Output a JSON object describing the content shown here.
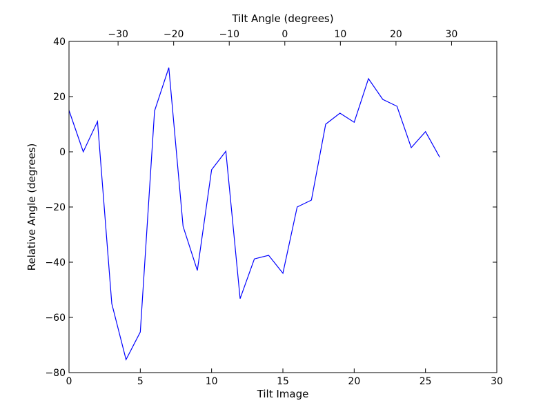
{
  "chart_data": {
    "type": "line",
    "xlabel": "Tilt Image",
    "ylabel": "Relative Angle (degrees)",
    "top_xlabel": "Tilt Angle (degrees)",
    "xlim": [
      0,
      30
    ],
    "ylim": [
      -80,
      40
    ],
    "top_xlim": [
      -38.83,
      38.14
    ],
    "x_ticks": [
      0,
      5,
      10,
      15,
      20,
      25,
      30
    ],
    "y_ticks": [
      -80,
      -60,
      -40,
      -20,
      0,
      20,
      40
    ],
    "top_x_ticks": [
      -30,
      -20,
      -10,
      0,
      10,
      20,
      30
    ],
    "grid": false,
    "line_color": "#0000ff",
    "series": [
      {
        "x": [
          0,
          1,
          2,
          3,
          4,
          5,
          6,
          7,
          8,
          9,
          10,
          11,
          12,
          13,
          14,
          15,
          16,
          17,
          18,
          19,
          20,
          21,
          22,
          23,
          24,
          25,
          26
        ],
        "values": [
          15,
          0,
          11,
          -55,
          -75.3,
          -65.3,
          14.8,
          30.5,
          -27,
          -43,
          -6.5,
          0.2,
          -53.2,
          -38.8,
          -37.5,
          -44,
          -20,
          -17.5,
          10,
          14,
          10.7,
          26.5,
          19,
          16.5,
          1.5,
          7.3,
          -2
        ]
      }
    ]
  }
}
